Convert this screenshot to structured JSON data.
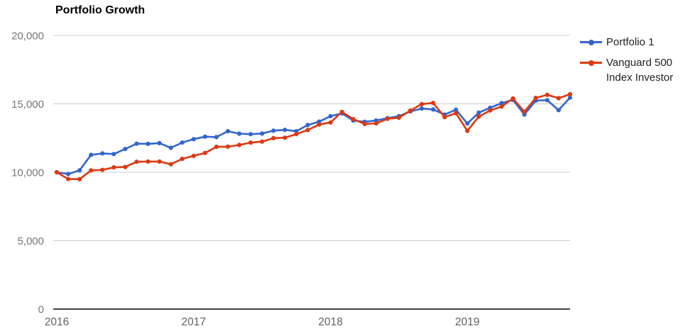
{
  "title": "Portfolio Growth",
  "chart_data": {
    "type": "line",
    "title": "Portfolio Growth",
    "grid": true,
    "legend_position": "right",
    "x_axis": {
      "unit": "month",
      "tick_labels": [
        "2016",
        "2017",
        "2018",
        "2019"
      ],
      "tick_month_indices": [
        0,
        12,
        24,
        36
      ]
    },
    "y_axis": {
      "ticks": [
        0,
        5000,
        10000,
        15000,
        20000
      ],
      "tick_labels": [
        "0",
        "5,000",
        "10,000",
        "15,000",
        "20,000"
      ],
      "range": [
        0,
        20000
      ]
    },
    "series": [
      {
        "name": "Portfolio 1",
        "color": "#3366cc",
        "values": [
          10000,
          9870,
          10140,
          11270,
          11380,
          11330,
          11700,
          12090,
          12080,
          12130,
          11790,
          12170,
          12420,
          12600,
          12570,
          13000,
          12820,
          12780,
          12830,
          13040,
          13100,
          13000,
          13450,
          13700,
          14100,
          14300,
          13780,
          13690,
          13780,
          13955,
          14095,
          14445,
          14660,
          14590,
          14220,
          14570,
          13565,
          14360,
          14710,
          15050,
          15290,
          14220,
          15240,
          15270,
          14540,
          15450
        ]
      },
      {
        "name": "Vanguard 500 Index Investor",
        "color": "#dc3912",
        "values": [
          10000,
          9503,
          9491,
          10134,
          10174,
          10356,
          10383,
          10765,
          10780,
          10782,
          10586,
          10978,
          11195,
          11407,
          11860,
          11873,
          11995,
          12164,
          12240,
          12491,
          12529,
          12787,
          13086,
          13487,
          13637,
          14414,
          13882,
          13526,
          13577,
          13903,
          13988,
          14508,
          14980,
          15065,
          14033,
          14318,
          13025,
          14068,
          14519,
          14800,
          15398,
          14420,
          15437,
          15659,
          15412,
          15700
        ]
      }
    ]
  }
}
